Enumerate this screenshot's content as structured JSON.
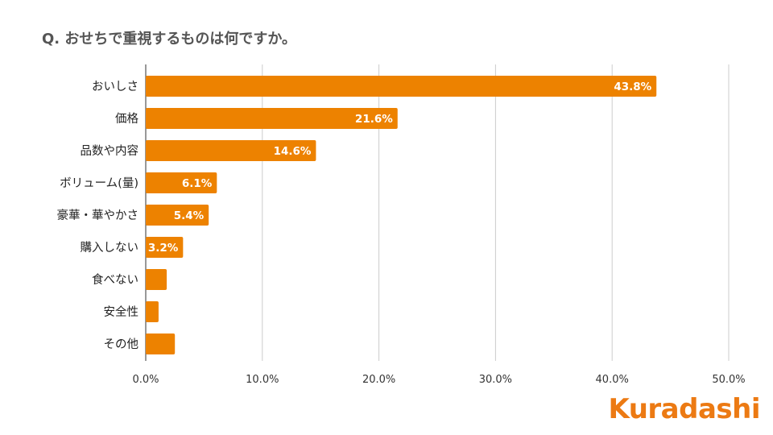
{
  "brand": {
    "name": "Kuradashi",
    "color": "#ec7a13"
  },
  "chart_data": {
    "type": "bar",
    "orientation": "horizontal",
    "title": "Q. おせちで重視するものは何ですか。",
    "xlabel": "",
    "ylabel": "",
    "categories": [
      "おいしさ",
      "価格",
      "品数や内容",
      "ボリューム(量)",
      "豪華・華やかさ",
      "購入しない",
      "食べない",
      "安全性",
      "その他"
    ],
    "values": [
      43.8,
      21.6,
      14.6,
      6.1,
      5.4,
      3.2,
      1.8,
      1.1,
      2.5
    ],
    "data_labels": [
      "43.8%",
      "21.6%",
      "14.6%",
      "6.1%",
      "5.4%",
      "3.2%",
      "",
      "",
      ""
    ],
    "xlim": [
      0,
      50
    ],
    "xticks": [
      0,
      10,
      20,
      30,
      40,
      50
    ],
    "xtick_labels": [
      "0.0%",
      "10.0%",
      "20.0%",
      "30.0%",
      "40.0%",
      "50.0%"
    ],
    "bar_color": "#ed8200",
    "grid": true,
    "legend": "none"
  }
}
